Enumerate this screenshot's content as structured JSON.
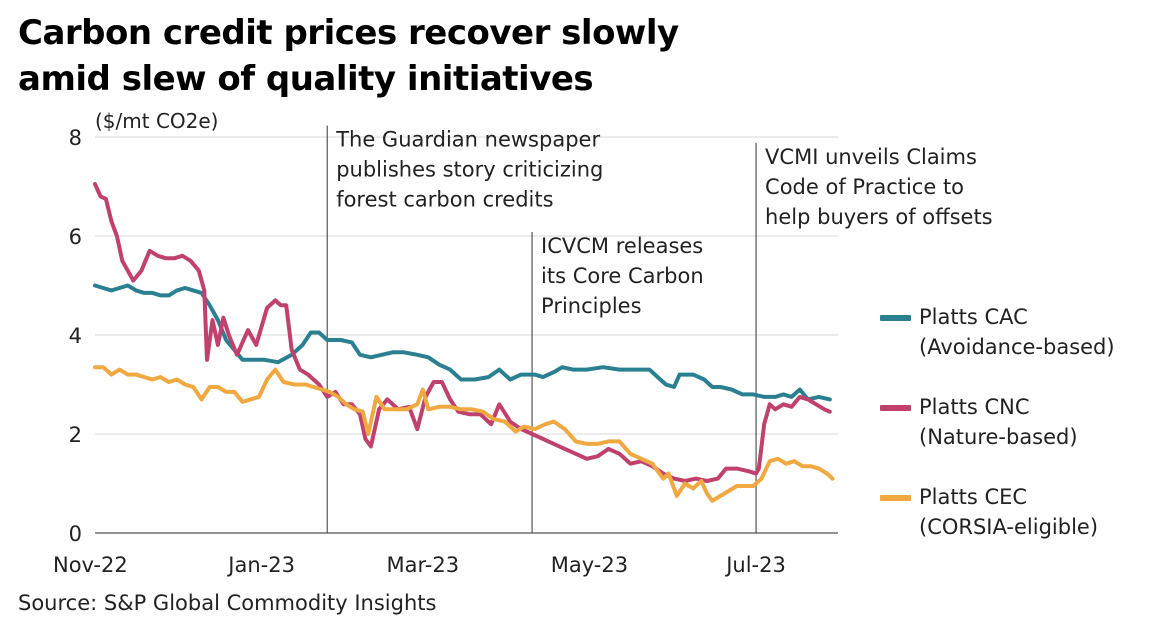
{
  "chart_data": {
    "type": "line",
    "title": [
      "Carbon credit prices recover slowly",
      "amid slew of quality initiatives"
    ],
    "ylabel": "($/mt CO2e)",
    "xlabel": "",
    "ylim": [
      0,
      8
    ],
    "xlim": [
      "2022-11-01",
      "2023-07-31"
    ],
    "y_ticks": [
      0,
      2,
      4,
      6,
      8
    ],
    "x_ticks": [
      {
        "label": "Nov-22",
        "date": "2022-11-01"
      },
      {
        "label": "Jan-23",
        "date": "2023-01-01"
      },
      {
        "label": "Mar-23",
        "date": "2023-03-01"
      },
      {
        "label": "May-23",
        "date": "2023-05-01"
      },
      {
        "label": "Jul-23",
        "date": "2023-07-01"
      }
    ],
    "grid": "horizontal",
    "legend_position": "right",
    "series": [
      {
        "name": [
          "Platts CAC",
          "(Avoidance-based)"
        ],
        "color": "#2a8090",
        "points": [
          [
            "2022-11-01",
            5.0
          ],
          [
            "2022-11-04",
            4.95
          ],
          [
            "2022-11-07",
            4.9
          ],
          [
            "2022-11-10",
            4.95
          ],
          [
            "2022-11-13",
            5.0
          ],
          [
            "2022-11-16",
            4.9
          ],
          [
            "2022-11-19",
            4.85
          ],
          [
            "2022-11-22",
            4.85
          ],
          [
            "2022-11-25",
            4.8
          ],
          [
            "2022-11-28",
            4.8
          ],
          [
            "2022-12-01",
            4.9
          ],
          [
            "2022-12-04",
            4.95
          ],
          [
            "2022-12-07",
            4.9
          ],
          [
            "2022-12-10",
            4.85
          ],
          [
            "2022-12-13",
            4.6
          ],
          [
            "2022-12-16",
            4.3
          ],
          [
            "2022-12-19",
            3.9
          ],
          [
            "2022-12-22",
            3.7
          ],
          [
            "2022-12-25",
            3.5
          ],
          [
            "2022-12-28",
            3.5
          ],
          [
            "2023-01-02",
            3.5
          ],
          [
            "2023-01-07",
            3.45
          ],
          [
            "2023-01-12",
            3.6
          ],
          [
            "2023-01-16",
            3.8
          ],
          [
            "2023-01-19",
            4.05
          ],
          [
            "2023-01-22",
            4.05
          ],
          [
            "2023-01-25",
            3.9
          ],
          [
            "2023-01-30",
            3.9
          ],
          [
            "2023-02-03",
            3.85
          ],
          [
            "2023-02-06",
            3.6
          ],
          [
            "2023-02-10",
            3.55
          ],
          [
            "2023-02-14",
            3.6
          ],
          [
            "2023-02-18",
            3.65
          ],
          [
            "2023-02-22",
            3.65
          ],
          [
            "2023-02-27",
            3.6
          ],
          [
            "2023-03-03",
            3.55
          ],
          [
            "2023-03-07",
            3.4
          ],
          [
            "2023-03-11",
            3.3
          ],
          [
            "2023-03-15",
            3.1
          ],
          [
            "2023-03-20",
            3.1
          ],
          [
            "2023-03-25",
            3.15
          ],
          [
            "2023-03-29",
            3.3
          ],
          [
            "2023-04-02",
            3.1
          ],
          [
            "2023-04-06",
            3.2
          ],
          [
            "2023-04-11",
            3.2
          ],
          [
            "2023-04-14",
            3.15
          ],
          [
            "2023-04-18",
            3.25
          ],
          [
            "2023-04-21",
            3.35
          ],
          [
            "2023-04-25",
            3.3
          ],
          [
            "2023-04-30",
            3.3
          ],
          [
            "2023-05-06",
            3.35
          ],
          [
            "2023-05-12",
            3.3
          ],
          [
            "2023-05-18",
            3.3
          ],
          [
            "2023-05-23",
            3.3
          ],
          [
            "2023-05-26",
            3.15
          ],
          [
            "2023-05-29",
            3.0
          ],
          [
            "2023-06-01",
            2.95
          ],
          [
            "2023-06-03",
            3.2
          ],
          [
            "2023-06-08",
            3.2
          ],
          [
            "2023-06-12",
            3.1
          ],
          [
            "2023-06-15",
            2.95
          ],
          [
            "2023-06-18",
            2.95
          ],
          [
            "2023-06-22",
            2.9
          ],
          [
            "2023-06-26",
            2.8
          ],
          [
            "2023-06-30",
            2.8
          ],
          [
            "2023-07-04",
            2.75
          ],
          [
            "2023-07-08",
            2.75
          ],
          [
            "2023-07-11",
            2.8
          ],
          [
            "2023-07-14",
            2.75
          ],
          [
            "2023-07-17",
            2.9
          ],
          [
            "2023-07-20",
            2.7
          ],
          [
            "2023-07-24",
            2.75
          ],
          [
            "2023-07-28",
            2.7
          ]
        ]
      },
      {
        "name": [
          "Platts CNC",
          "(Nature-based)"
        ],
        "color": "#c0406e",
        "points": [
          [
            "2022-11-01",
            7.05
          ],
          [
            "2022-11-03",
            6.8
          ],
          [
            "2022-11-05",
            6.75
          ],
          [
            "2022-11-07",
            6.3
          ],
          [
            "2022-11-09",
            6.0
          ],
          [
            "2022-11-11",
            5.5
          ],
          [
            "2022-11-13",
            5.3
          ],
          [
            "2022-11-15",
            5.1
          ],
          [
            "2022-11-18",
            5.3
          ],
          [
            "2022-11-21",
            5.7
          ],
          [
            "2022-11-24",
            5.6
          ],
          [
            "2022-11-27",
            5.55
          ],
          [
            "2022-11-30",
            5.55
          ],
          [
            "2022-12-03",
            5.6
          ],
          [
            "2022-12-06",
            5.5
          ],
          [
            "2022-12-09",
            5.3
          ],
          [
            "2022-12-11",
            4.9
          ],
          [
            "2022-12-12",
            3.5
          ],
          [
            "2022-12-14",
            4.3
          ],
          [
            "2022-12-16",
            3.8
          ],
          [
            "2022-12-18",
            4.35
          ],
          [
            "2022-12-20",
            4.0
          ],
          [
            "2022-12-23",
            3.6
          ],
          [
            "2022-12-27",
            4.1
          ],
          [
            "2022-12-30",
            3.8
          ],
          [
            "2023-01-03",
            4.55
          ],
          [
            "2023-01-06",
            4.7
          ],
          [
            "2023-01-08",
            4.6
          ],
          [
            "2023-01-10",
            4.6
          ],
          [
            "2023-01-12",
            3.7
          ],
          [
            "2023-01-15",
            3.3
          ],
          [
            "2023-01-18",
            3.2
          ],
          [
            "2023-01-22",
            3.0
          ],
          [
            "2023-01-25",
            2.75
          ],
          [
            "2023-01-28",
            2.85
          ],
          [
            "2023-01-31",
            2.6
          ],
          [
            "2023-02-03",
            2.6
          ],
          [
            "2023-02-06",
            2.4
          ],
          [
            "2023-02-08",
            1.9
          ],
          [
            "2023-02-10",
            1.75
          ],
          [
            "2023-02-13",
            2.5
          ],
          [
            "2023-02-16",
            2.7
          ],
          [
            "2023-02-20",
            2.5
          ],
          [
            "2023-02-24",
            2.55
          ],
          [
            "2023-02-27",
            2.1
          ],
          [
            "2023-03-02",
            2.75
          ],
          [
            "2023-03-05",
            3.05
          ],
          [
            "2023-03-08",
            3.05
          ],
          [
            "2023-03-11",
            2.7
          ],
          [
            "2023-03-14",
            2.45
          ],
          [
            "2023-03-18",
            2.4
          ],
          [
            "2023-03-22",
            2.4
          ],
          [
            "2023-03-26",
            2.2
          ],
          [
            "2023-03-29",
            2.6
          ],
          [
            "2023-04-02",
            2.25
          ],
          [
            "2023-04-06",
            2.1
          ],
          [
            "2023-04-10",
            2.0
          ],
          [
            "2023-04-14",
            1.9
          ],
          [
            "2023-04-18",
            1.8
          ],
          [
            "2023-04-22",
            1.7
          ],
          [
            "2023-04-26",
            1.6
          ],
          [
            "2023-04-30",
            1.5
          ],
          [
            "2023-05-04",
            1.55
          ],
          [
            "2023-05-08",
            1.7
          ],
          [
            "2023-05-12",
            1.6
          ],
          [
            "2023-05-16",
            1.4
          ],
          [
            "2023-05-20",
            1.45
          ],
          [
            "2023-05-24",
            1.35
          ],
          [
            "2023-05-28",
            1.2
          ],
          [
            "2023-06-01",
            1.1
          ],
          [
            "2023-06-05",
            1.05
          ],
          [
            "2023-06-09",
            1.1
          ],
          [
            "2023-06-13",
            1.05
          ],
          [
            "2023-06-17",
            1.1
          ],
          [
            "2023-06-20",
            1.3
          ],
          [
            "2023-06-24",
            1.3
          ],
          [
            "2023-06-28",
            1.25
          ],
          [
            "2023-07-01",
            1.2
          ],
          [
            "2023-07-02",
            1.3
          ],
          [
            "2023-07-04",
            2.2
          ],
          [
            "2023-07-06",
            2.6
          ],
          [
            "2023-07-08",
            2.5
          ],
          [
            "2023-07-11",
            2.6
          ],
          [
            "2023-07-14",
            2.55
          ],
          [
            "2023-07-17",
            2.75
          ],
          [
            "2023-07-20",
            2.7
          ],
          [
            "2023-07-23",
            2.6
          ],
          [
            "2023-07-26",
            2.5
          ],
          [
            "2023-07-28",
            2.45
          ]
        ]
      },
      {
        "name": [
          "Platts CEC",
          "(CORSIA-eligible)"
        ],
        "color": "#f0a840",
        "points": [
          [
            "2022-11-01",
            3.35
          ],
          [
            "2022-11-04",
            3.35
          ],
          [
            "2022-11-07",
            3.2
          ],
          [
            "2022-11-10",
            3.3
          ],
          [
            "2022-11-13",
            3.2
          ],
          [
            "2022-11-16",
            3.2
          ],
          [
            "2022-11-19",
            3.15
          ],
          [
            "2022-11-22",
            3.1
          ],
          [
            "2022-11-25",
            3.15
          ],
          [
            "2022-11-28",
            3.05
          ],
          [
            "2022-12-01",
            3.1
          ],
          [
            "2022-12-04",
            3.0
          ],
          [
            "2022-12-07",
            2.95
          ],
          [
            "2022-12-10",
            2.7
          ],
          [
            "2022-12-13",
            2.95
          ],
          [
            "2022-12-16",
            2.95
          ],
          [
            "2022-12-19",
            2.85
          ],
          [
            "2022-12-22",
            2.85
          ],
          [
            "2022-12-25",
            2.65
          ],
          [
            "2022-12-28",
            2.7
          ],
          [
            "2022-12-31",
            2.75
          ],
          [
            "2023-01-03",
            3.1
          ],
          [
            "2023-01-06",
            3.3
          ],
          [
            "2023-01-09",
            3.05
          ],
          [
            "2023-01-13",
            3.0
          ],
          [
            "2023-01-17",
            3.0
          ],
          [
            "2023-01-20",
            2.95
          ],
          [
            "2023-01-23",
            2.9
          ],
          [
            "2023-01-26",
            2.85
          ],
          [
            "2023-01-29",
            2.75
          ],
          [
            "2023-02-01",
            2.6
          ],
          [
            "2023-02-04",
            2.5
          ],
          [
            "2023-02-07",
            2.45
          ],
          [
            "2023-02-09",
            2.0
          ],
          [
            "2023-02-12",
            2.75
          ],
          [
            "2023-02-15",
            2.5
          ],
          [
            "2023-02-19",
            2.5
          ],
          [
            "2023-02-23",
            2.5
          ],
          [
            "2023-02-27",
            2.6
          ],
          [
            "2023-03-01",
            2.9
          ],
          [
            "2023-03-03",
            2.5
          ],
          [
            "2023-03-07",
            2.55
          ],
          [
            "2023-03-11",
            2.55
          ],
          [
            "2023-03-15",
            2.5
          ],
          [
            "2023-03-19",
            2.5
          ],
          [
            "2023-03-23",
            2.45
          ],
          [
            "2023-03-27",
            2.3
          ],
          [
            "2023-03-31",
            2.25
          ],
          [
            "2023-04-04",
            2.05
          ],
          [
            "2023-04-07",
            2.15
          ],
          [
            "2023-04-11",
            2.1
          ],
          [
            "2023-04-15",
            2.2
          ],
          [
            "2023-04-18",
            2.25
          ],
          [
            "2023-04-22",
            2.1
          ],
          [
            "2023-04-26",
            1.85
          ],
          [
            "2023-04-30",
            1.8
          ],
          [
            "2023-05-04",
            1.8
          ],
          [
            "2023-05-08",
            1.85
          ],
          [
            "2023-05-12",
            1.85
          ],
          [
            "2023-05-16",
            1.6
          ],
          [
            "2023-05-20",
            1.5
          ],
          [
            "2023-05-24",
            1.4
          ],
          [
            "2023-05-28",
            1.1
          ],
          [
            "2023-05-30",
            1.2
          ],
          [
            "2023-06-02",
            0.75
          ],
          [
            "2023-06-05",
            1.0
          ],
          [
            "2023-06-08",
            0.9
          ],
          [
            "2023-06-11",
            1.05
          ],
          [
            "2023-06-13",
            0.8
          ],
          [
            "2023-06-15",
            0.65
          ],
          [
            "2023-06-18",
            0.75
          ],
          [
            "2023-06-21",
            0.85
          ],
          [
            "2023-06-24",
            0.95
          ],
          [
            "2023-06-27",
            0.95
          ],
          [
            "2023-06-30",
            0.95
          ],
          [
            "2023-07-03",
            1.1
          ],
          [
            "2023-07-06",
            1.45
          ],
          [
            "2023-07-09",
            1.5
          ],
          [
            "2023-07-12",
            1.4
          ],
          [
            "2023-07-15",
            1.45
          ],
          [
            "2023-07-18",
            1.35
          ],
          [
            "2023-07-21",
            1.35
          ],
          [
            "2023-07-24",
            1.3
          ],
          [
            "2023-07-27",
            1.2
          ],
          [
            "2023-07-29",
            1.1
          ]
        ]
      }
    ],
    "annotations": [
      {
        "date": "2023-01-25",
        "lines": [
          "The Guardian newspaper",
          "publishes story criticizing",
          "forest carbon credits"
        ],
        "text_y_top": 8.15
      },
      {
        "date": "2023-04-10",
        "lines": [
          "ICVCM releases",
          "its Core Carbon",
          "Principles"
        ],
        "text_y_top": 6.0
      },
      {
        "date": "2023-07-01",
        "lines": [
          "VCMI unveils Claims",
          "Code of Practice to",
          "help buyers of offsets"
        ],
        "text_y_top": 7.8
      }
    ]
  },
  "source": "Source: S&P Global Commodity Insights"
}
